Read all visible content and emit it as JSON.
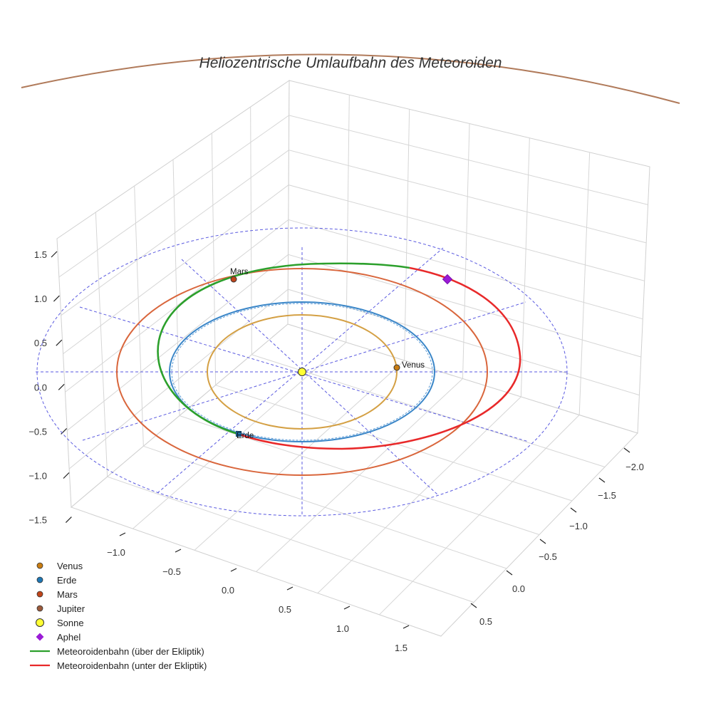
{
  "chart_data": {
    "type": "3d-orbit",
    "title": "Heliozentrische Umlaufbahn des Meteoroiden",
    "axes": {
      "x_ticks": [
        "−1.0",
        "−0.5",
        "0.0",
        "0.5",
        "1.0",
        "1.5"
      ],
      "y_ticks": [
        "−2.0",
        "−1.5",
        "−1.0",
        "−0.5",
        "0.0",
        "0.5"
      ],
      "z_ticks": [
        "1.5",
        "1.0",
        "0.5",
        "0.0",
        "−0.5",
        "−1.0",
        "−1.5"
      ],
      "grid": true
    },
    "orbits_au": [
      {
        "name": "Venus",
        "radius": 0.72,
        "color": "#d4a044"
      },
      {
        "name": "Erde",
        "radius": 1.0,
        "color": "#3a86c8"
      },
      {
        "name": "Mars",
        "radius": 1.52,
        "color": "#d9663c"
      },
      {
        "name": "Jupiter",
        "radius": 5.2,
        "color": "#b07a5a"
      }
    ],
    "points": [
      {
        "name": "Venus",
        "label": "Venus",
        "color": "#c97d12"
      },
      {
        "name": "Erde",
        "label": "Erde",
        "color": "#1f77b4"
      },
      {
        "name": "Mars",
        "label": "Mars",
        "color": "#c0451a"
      },
      {
        "name": "Sonne",
        "color": "#ffff33"
      },
      {
        "name": "Aphel",
        "color": "#9a1bd6"
      }
    ],
    "meteoroid_orbit": {
      "above_ecliptic_color": "#2ca02c",
      "below_ecliptic_color": "#e8292a"
    },
    "legend": {
      "position": "bottom-left",
      "entries": [
        {
          "label": "Venus",
          "kind": "dot",
          "color": "#c97d12"
        },
        {
          "label": "Erde",
          "kind": "dot",
          "color": "#1f77b4"
        },
        {
          "label": "Mars",
          "kind": "dot",
          "color": "#c0451a"
        },
        {
          "label": "Jupiter",
          "kind": "dot",
          "color": "#9b5a3c"
        },
        {
          "label": "Sonne",
          "kind": "sun",
          "color": "#ffff33"
        },
        {
          "label": "Aphel",
          "kind": "diamond",
          "color": "#9a1bd6"
        },
        {
          "label": "Meteoroidenbahn (über der Ekliptik)",
          "kind": "line",
          "color": "#2ca02c"
        },
        {
          "label": "Meteoroidenbahn (unter der Ekliptik)",
          "kind": "line",
          "color": "#e8292a"
        }
      ]
    }
  }
}
